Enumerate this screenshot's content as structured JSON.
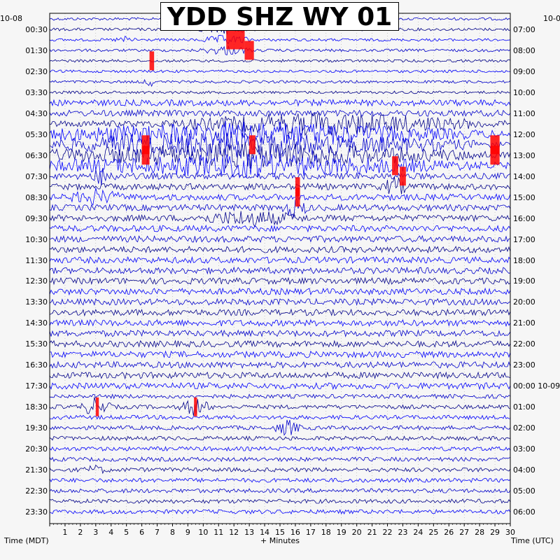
{
  "chart_data": {
    "type": "line",
    "title": "YDD SHZ WY 01",
    "xlabel": "+ Minutes",
    "left_axis_label": "Time (MDT)",
    "right_axis_label": "Time (UTC)",
    "left_date_label": "10-08",
    "right_date_label": "10-0",
    "xlim": [
      0,
      30
    ],
    "x_ticks": [
      "1",
      "2",
      "3",
      "4",
      "5",
      "6",
      "7",
      "8",
      "9",
      "10",
      "11",
      "12",
      "13",
      "14",
      "15",
      "16",
      "17",
      "18",
      "19",
      "20",
      "21",
      "22",
      "23",
      "24",
      "25",
      "26",
      "27",
      "28",
      "29",
      "30"
    ],
    "left_ticks": [
      "00:30",
      "01:30",
      "02:30",
      "03:30",
      "04:30",
      "05:30",
      "06:30",
      "07:30",
      "08:30",
      "09:30",
      "10:30",
      "11:30",
      "12:30",
      "13:30",
      "14:30",
      "15:30",
      "16:30",
      "17:30",
      "18:30",
      "19:30",
      "20:30",
      "21:30",
      "22:30",
      "23:30"
    ],
    "right_ticks": [
      "07:00",
      "08:00",
      "09:00",
      "10:00",
      "11:00",
      "12:00",
      "13:00",
      "14:00",
      "15:00",
      "16:00",
      "17:00",
      "18:00",
      "19:00",
      "20:00",
      "21:00",
      "22:00",
      "23:00",
      "00:00 10-09",
      "01:00",
      "02:00",
      "03:00",
      "04:00",
      "05:00",
      "06:00"
    ],
    "trace_count": 48,
    "trace_colors": [
      "#0000cd",
      "#00008b",
      "#0000ff"
    ],
    "clip_color": "#ff0000",
    "grid": true
  }
}
